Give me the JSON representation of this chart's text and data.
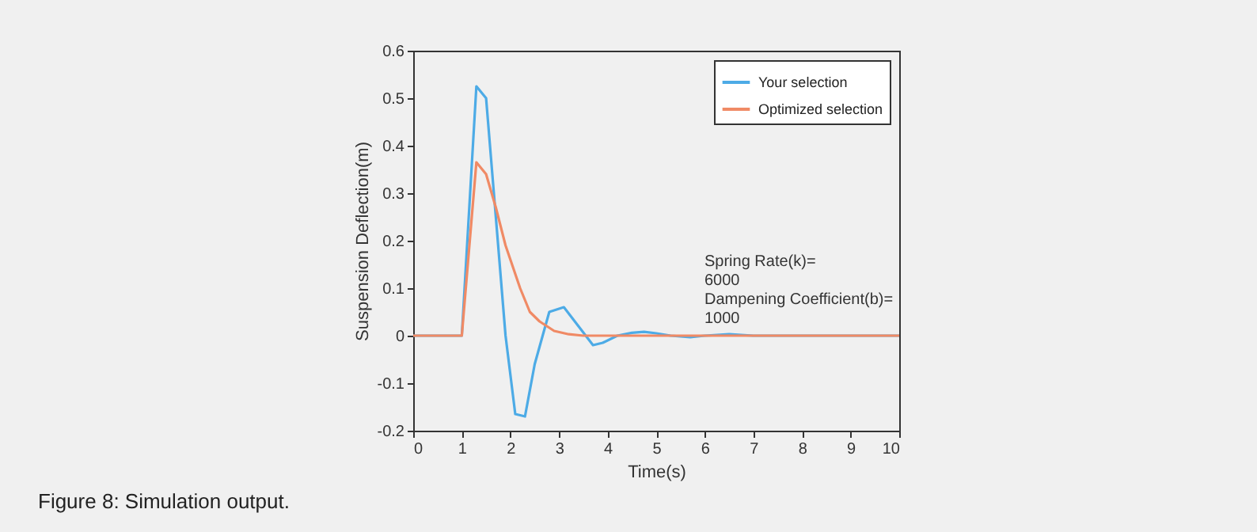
{
  "chart_data": {
    "type": "line",
    "xlabel": "Time(s)",
    "ylabel": "Suspension Deflection(m)",
    "xlim": [
      0,
      10
    ],
    "xticks": [
      0,
      1,
      2,
      3,
      4,
      5,
      6,
      7,
      8,
      9,
      10
    ],
    "ylim": [
      -0.2,
      0.6
    ],
    "yticks": [
      -0.2,
      -0.1,
      0,
      0.1,
      0.2,
      0.3,
      0.4,
      0.5,
      0.6
    ],
    "grid": false,
    "legend": "top right",
    "series": [
      {
        "name": "Your selection",
        "color": "#4dabe6",
        "x": [
          0,
          1.0,
          1.3,
          1.5,
          1.7,
          1.9,
          2.1,
          2.3,
          2.5,
          2.8,
          3.1,
          3.4,
          3.7,
          3.9,
          4.2,
          4.5,
          4.75,
          5.0,
          5.3,
          5.7,
          6.0,
          6.5,
          7.0,
          10
        ],
        "values": [
          0,
          0,
          0.525,
          0.5,
          0.25,
          0.0,
          -0.165,
          -0.17,
          -0.06,
          0.05,
          0.06,
          0.02,
          -0.02,
          -0.015,
          0,
          0.006,
          0.008,
          0.005,
          0,
          -0.003,
          0,
          0.003,
          0,
          0
        ]
      },
      {
        "name": "Optimized selection",
        "color": "#f08a65",
        "x": [
          0,
          1.0,
          1.3,
          1.5,
          1.7,
          1.9,
          2.2,
          2.4,
          2.6,
          2.9,
          3.2,
          3.5,
          10
        ],
        "values": [
          0,
          0,
          0.365,
          0.34,
          0.27,
          0.19,
          0.1,
          0.05,
          0.03,
          0.01,
          0.003,
          0,
          0
        ]
      }
    ],
    "annotations": [
      "Spring Rate(k)=\n6000\nDampening Coefficient(b)=\n1000",
      "Figure 8: Simulation output."
    ]
  }
}
